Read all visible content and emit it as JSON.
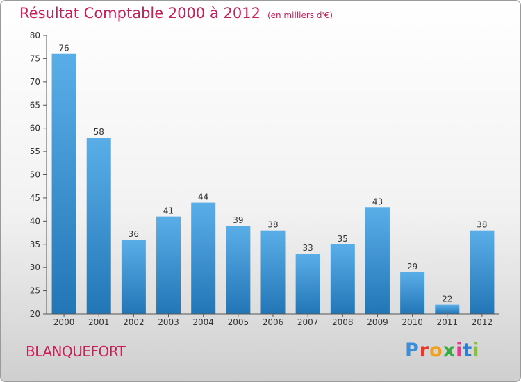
{
  "header": {
    "title": "Résultat Comptable 2000 à 2012",
    "unit": "(en milliers d'€)"
  },
  "footer": {
    "city": "BLANQUEFORT",
    "logo_letters": [
      "P",
      "r",
      "o",
      "x",
      "i",
      "t",
      "i"
    ],
    "logo_colors": [
      "#3a8fd8",
      "#e23a2e",
      "#f0a020",
      "#3aa845",
      "#e23a8a",
      "#2a7fd0",
      "#88c040"
    ]
  },
  "colors": {
    "accent": "#c81e5a",
    "bar_top": "#5aaee8",
    "bar_bottom": "#2376b6"
  },
  "chart_data": {
    "type": "bar",
    "title": "Résultat Comptable 2000 à 2012",
    "categories": [
      "2000",
      "2001",
      "2002",
      "2003",
      "2004",
      "2005",
      "2006",
      "2007",
      "2008",
      "2009",
      "2010",
      "2011",
      "2012"
    ],
    "values": [
      76,
      58,
      36,
      41,
      44,
      39,
      38,
      33,
      35,
      43,
      29,
      22,
      38
    ],
    "data_labels": [
      "76",
      "58",
      "36",
      "41",
      "44",
      "39",
      "38",
      "33",
      "35",
      "43",
      "29",
      "22",
      "38"
    ],
    "ylim": [
      20,
      80
    ],
    "yticks": [
      "20",
      "25",
      "30",
      "35",
      "40",
      "45",
      "50",
      "55",
      "60",
      "65",
      "70",
      "75",
      "80"
    ],
    "xlabel": "",
    "ylabel": "",
    "grid": false,
    "legend": "none"
  }
}
